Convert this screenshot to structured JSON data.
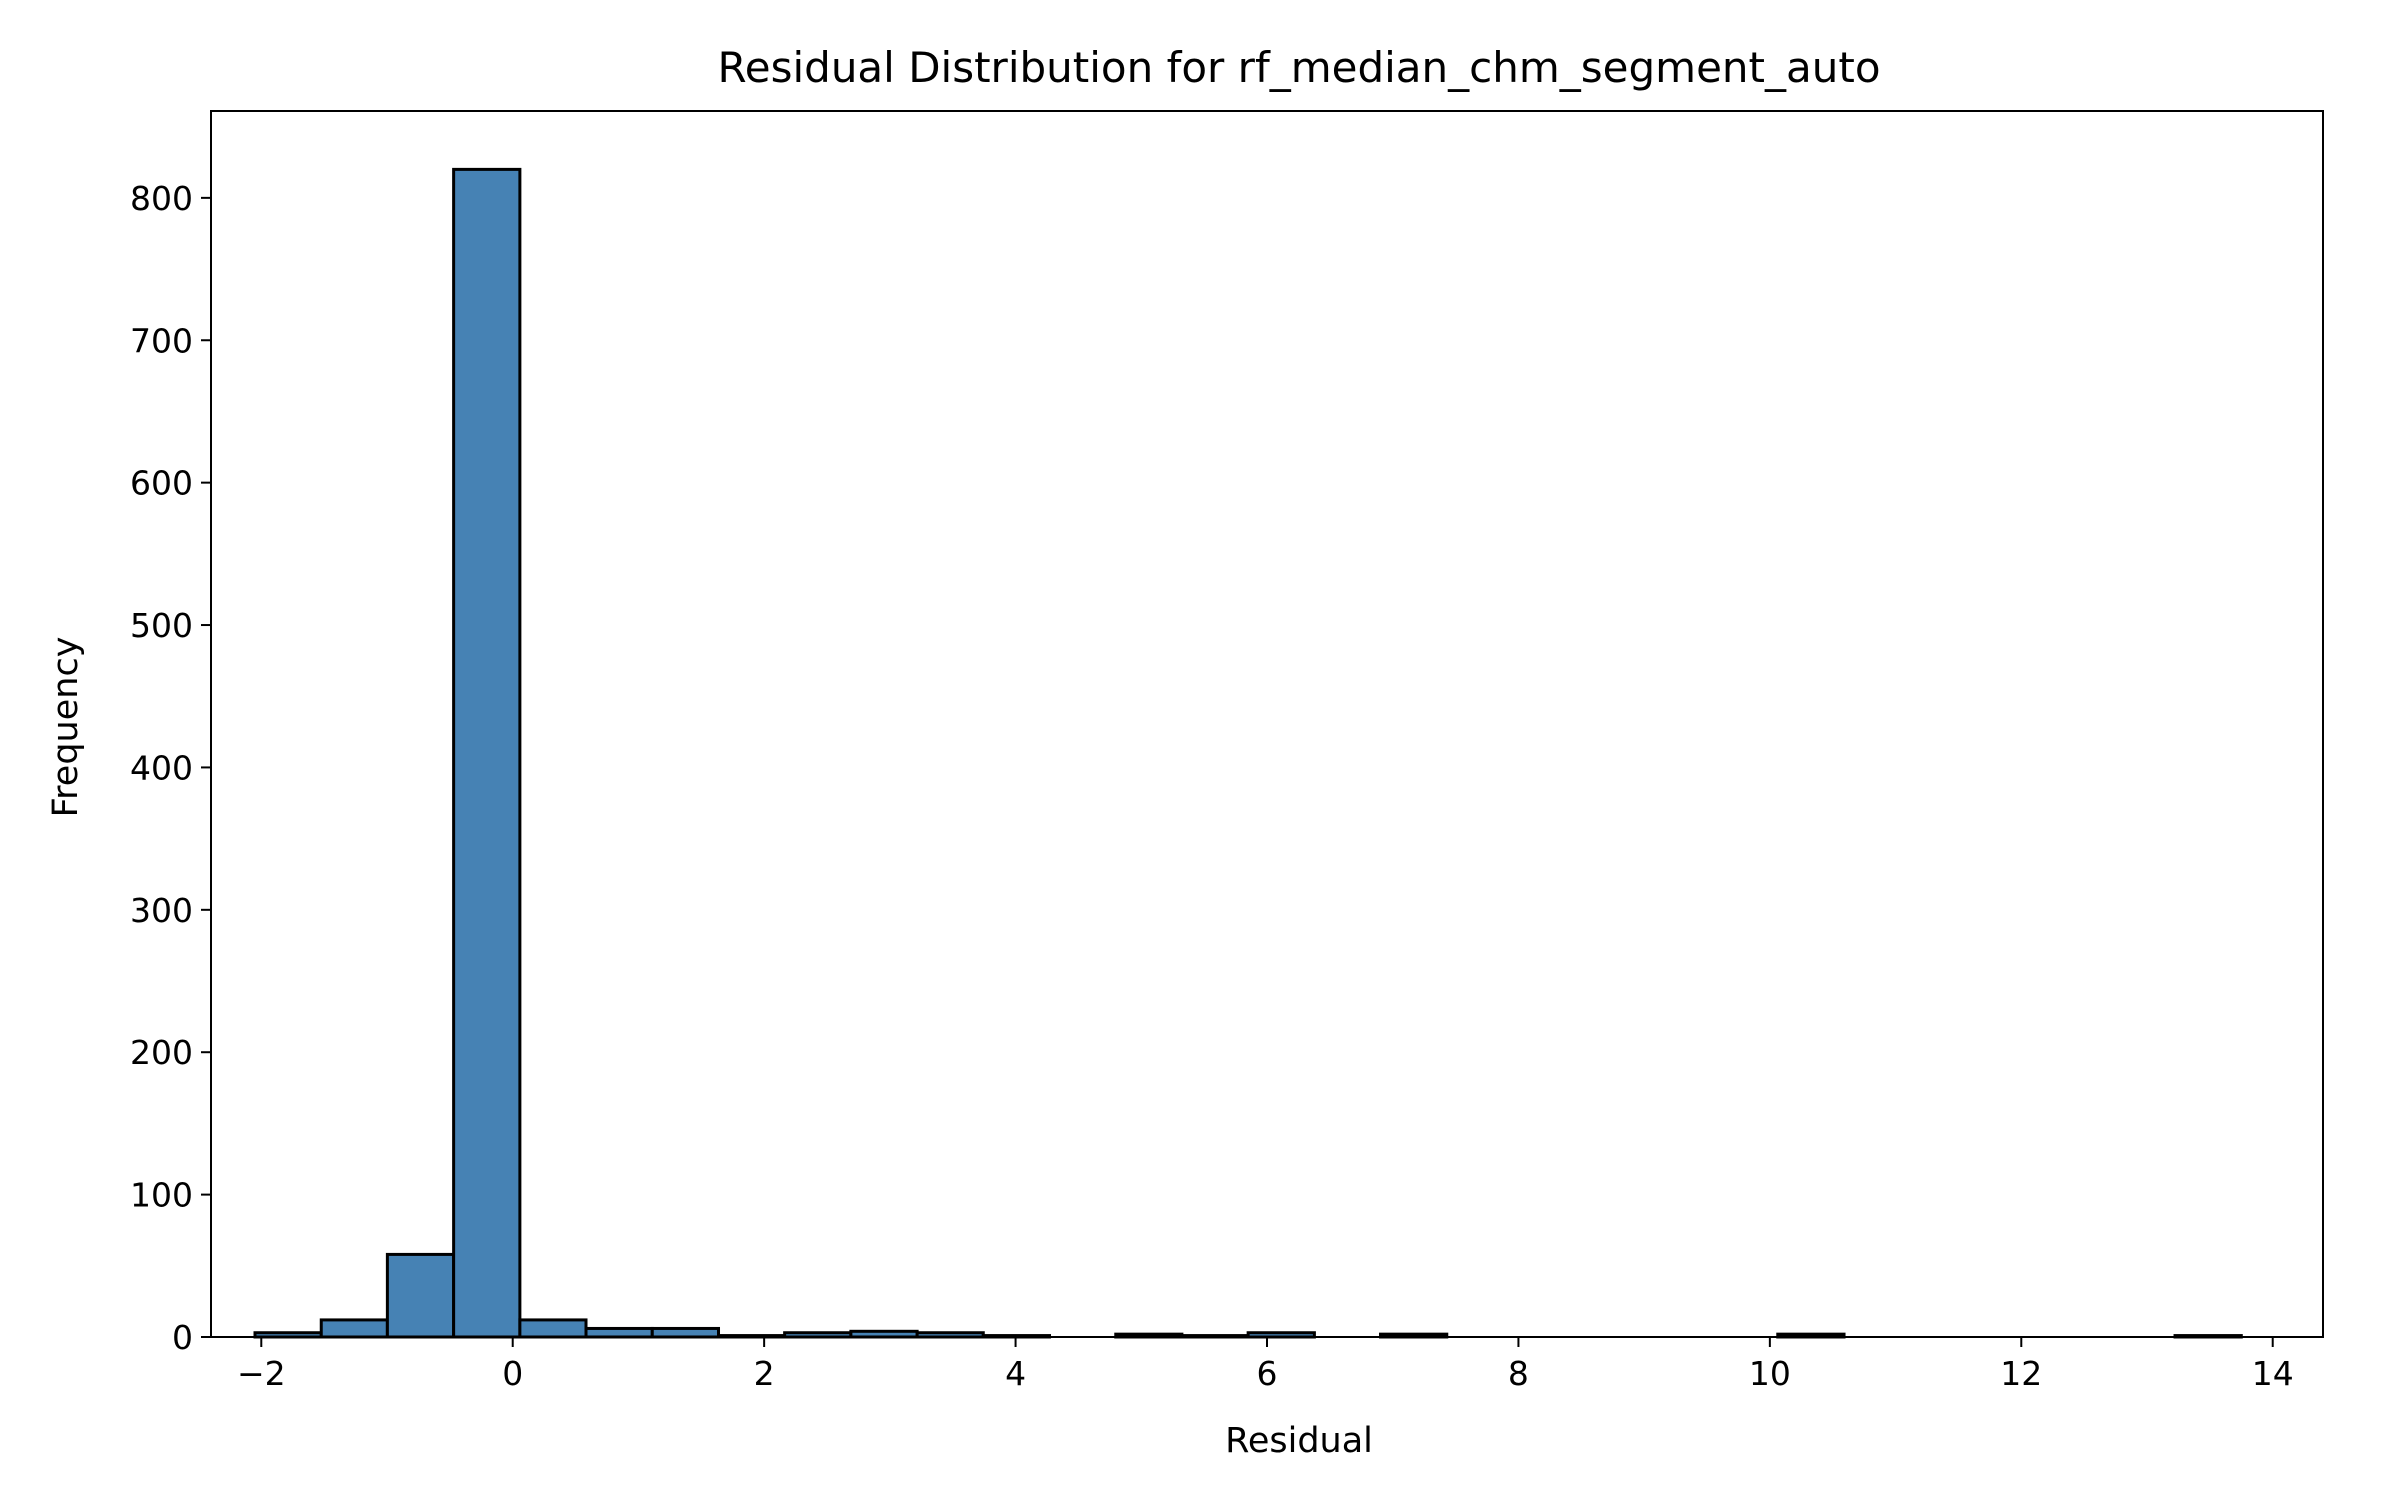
{
  "chart_data": {
    "type": "bar",
    "title": "Residual Distribution for rf_median_chm_segment_auto",
    "xlabel": "Residual",
    "ylabel": "Frequency",
    "xlim": [
      -2.4,
      14.4
    ],
    "ylim": [
      0,
      861
    ],
    "x_ticks": [
      -2,
      0,
      2,
      4,
      6,
      8,
      10,
      12,
      14
    ],
    "x_tick_labels": [
      "−2",
      "0",
      "2",
      "4",
      "6",
      "8",
      "10",
      "12",
      "14"
    ],
    "y_ticks": [
      0,
      100,
      200,
      300,
      400,
      500,
      600,
      700,
      800
    ],
    "y_tick_labels": [
      "0",
      "100",
      "200",
      "300",
      "400",
      "500",
      "600",
      "700",
      "800"
    ],
    "bin_edges": [
      -2.05,
      -1.523,
      -0.997,
      -0.47,
      0.057,
      0.583,
      1.11,
      1.637,
      2.163,
      2.69,
      3.217,
      3.743,
      4.27,
      4.797,
      5.323,
      5.85,
      6.377,
      6.903,
      7.43,
      7.957,
      8.483,
      9.01,
      9.537,
      10.063,
      10.59,
      11.117,
      11.643,
      12.17,
      12.697,
      13.223,
      13.75
    ],
    "values": [
      3,
      12,
      58,
      820,
      12,
      6,
      6,
      1,
      3,
      4,
      3,
      1,
      0,
      2,
      1,
      3,
      0,
      2,
      0,
      0,
      0,
      0,
      0,
      2,
      0,
      0,
      0,
      0,
      0,
      1
    ],
    "bar_color": "#4682b4",
    "edge_color": "#000000",
    "grid": false,
    "legend": "none"
  }
}
